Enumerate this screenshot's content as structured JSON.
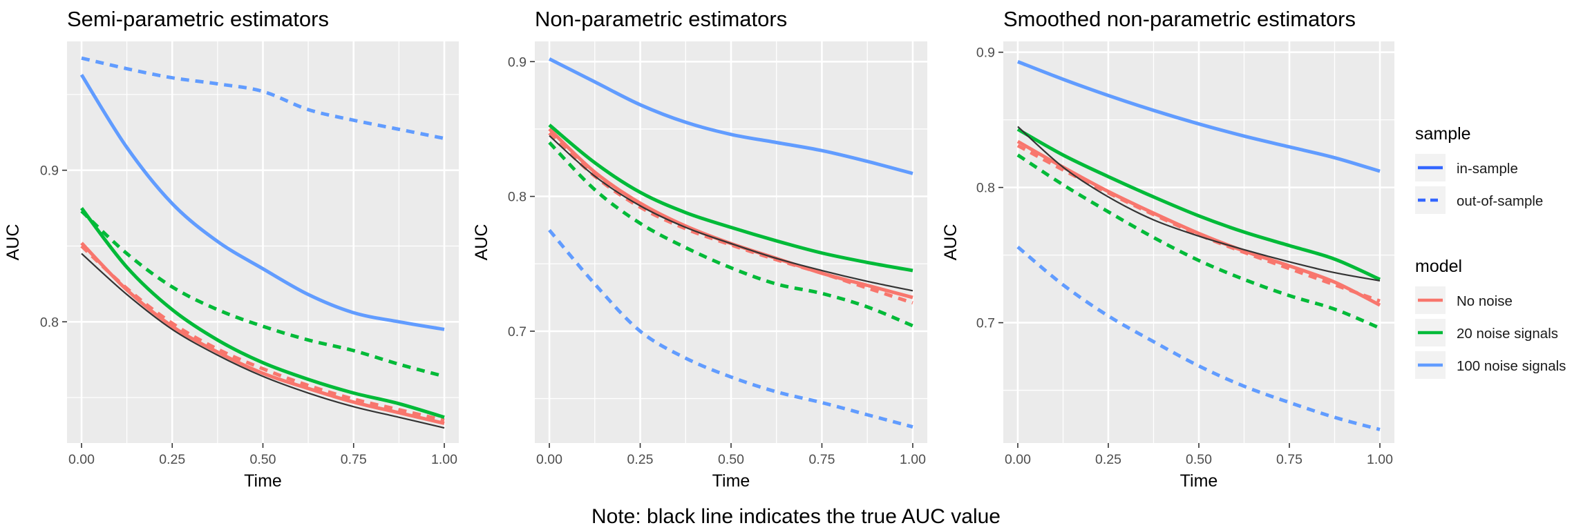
{
  "note": "Note: black line indicates the true AUC value",
  "legend": {
    "sample_title": "sample",
    "sample_items": [
      {
        "label": "in-sample",
        "linetype": "solid"
      },
      {
        "label": "out-of-sample",
        "linetype": "dashed"
      }
    ],
    "model_title": "model",
    "model_items": [
      {
        "label": "No noise",
        "color": "#F8766D"
      },
      {
        "label": "20 noise signals",
        "color": "#00BA38"
      },
      {
        "label": "100 noise signals",
        "color": "#619CFF"
      }
    ]
  },
  "colors": {
    "panel_bg": "#EBEBEB",
    "grid": "#FFFFFF",
    "true_line": "#333333",
    "no_noise": "#F8766D",
    "noise_20": "#00BA38",
    "noise_100": "#619CFF",
    "legend_in_sample_key": "#3366FF"
  },
  "chart_data": [
    {
      "type": "line",
      "title": "Semi-parametric estimators",
      "xlabel": "Time",
      "ylabel": "AUC",
      "xlim": [
        -0.04,
        1.04
      ],
      "ylim": [
        0.72,
        0.985
      ],
      "x_ticks": [
        0,
        0.25,
        0.5,
        0.75,
        1.0
      ],
      "x_tick_labels": [
        "0.00",
        "0.25",
        "0.50",
        "0.75",
        "1.00"
      ],
      "y_ticks": [
        0.8,
        0.9
      ],
      "y_tick_labels": [
        "0.8",
        "0.9"
      ],
      "y_minor_ticks": [
        0.75,
        0.85,
        0.95
      ],
      "x": [
        0,
        0.125,
        0.25,
        0.375,
        0.5,
        0.625,
        0.75,
        0.875,
        1.0
      ],
      "true_auc": [
        0.845,
        0.818,
        0.795,
        0.778,
        0.764,
        0.753,
        0.744,
        0.737,
        0.73
      ],
      "series": [
        {
          "model": "No noise",
          "sample": "in-sample",
          "values": [
            0.852,
            0.821,
            0.797,
            0.78,
            0.766,
            0.756,
            0.747,
            0.74,
            0.733
          ]
        },
        {
          "model": "No noise",
          "sample": "out-of-sample",
          "values": [
            0.85,
            0.822,
            0.799,
            0.782,
            0.769,
            0.758,
            0.749,
            0.742,
            0.735
          ]
        },
        {
          "model": "20 noise signals",
          "sample": "in-sample",
          "values": [
            0.875,
            0.836,
            0.808,
            0.788,
            0.773,
            0.762,
            0.753,
            0.746,
            0.737
          ]
        },
        {
          "model": "20 noise signals",
          "sample": "out-of-sample",
          "values": [
            0.873,
            0.845,
            0.823,
            0.808,
            0.797,
            0.788,
            0.781,
            0.772,
            0.764
          ]
        },
        {
          "model": "100 noise signals",
          "sample": "in-sample",
          "values": [
            0.963,
            0.915,
            0.878,
            0.853,
            0.835,
            0.818,
            0.806,
            0.8,
            0.795
          ]
        },
        {
          "model": "100 noise signals",
          "sample": "out-of-sample",
          "values": [
            0.974,
            0.967,
            0.961,
            0.957,
            0.952,
            0.94,
            0.933,
            0.927,
            0.921
          ]
        }
      ]
    },
    {
      "type": "line",
      "title": "Non-parametric estimators",
      "xlabel": "Time",
      "ylabel": "AUC",
      "xlim": [
        -0.04,
        1.04
      ],
      "ylim": [
        0.617,
        0.915
      ],
      "x_ticks": [
        0,
        0.25,
        0.5,
        0.75,
        1.0
      ],
      "x_tick_labels": [
        "0.00",
        "0.25",
        "0.50",
        "0.75",
        "1.00"
      ],
      "y_ticks": [
        0.7,
        0.8,
        0.9
      ],
      "y_tick_labels": [
        "0.7",
        "0.8",
        "0.9"
      ],
      "y_minor_ticks": [
        0.65,
        0.75,
        0.85
      ],
      "x": [
        0,
        0.125,
        0.25,
        0.375,
        0.5,
        0.625,
        0.75,
        0.875,
        1.0
      ],
      "true_auc": [
        0.845,
        0.815,
        0.793,
        0.777,
        0.765,
        0.754,
        0.745,
        0.737,
        0.73
      ],
      "series": [
        {
          "model": "No noise",
          "sample": "in-sample",
          "values": [
            0.85,
            0.818,
            0.795,
            0.778,
            0.765,
            0.754,
            0.743,
            0.734,
            0.725
          ]
        },
        {
          "model": "No noise",
          "sample": "out-of-sample",
          "values": [
            0.847,
            0.815,
            0.792,
            0.776,
            0.764,
            0.753,
            0.743,
            0.732,
            0.721
          ]
        },
        {
          "model": "20 noise signals",
          "sample": "in-sample",
          "values": [
            0.853,
            0.825,
            0.803,
            0.788,
            0.777,
            0.767,
            0.758,
            0.751,
            0.745
          ]
        },
        {
          "model": "20 noise signals",
          "sample": "out-of-sample",
          "values": [
            0.84,
            0.805,
            0.78,
            0.762,
            0.747,
            0.735,
            0.728,
            0.718,
            0.704
          ]
        },
        {
          "model": "100 noise signals",
          "sample": "in-sample",
          "values": [
            0.902,
            0.885,
            0.868,
            0.855,
            0.846,
            0.84,
            0.834,
            0.826,
            0.817
          ]
        },
        {
          "model": "100 noise signals",
          "sample": "out-of-sample",
          "values": [
            0.775,
            0.735,
            0.7,
            0.68,
            0.666,
            0.655,
            0.647,
            0.638,
            0.629
          ]
        }
      ]
    },
    {
      "type": "line",
      "title": "Smoothed non-parametric estimators",
      "xlabel": "Time",
      "ylabel": "AUC",
      "xlim": [
        -0.04,
        1.04
      ],
      "ylim": [
        0.611,
        0.908
      ],
      "x_ticks": [
        0,
        0.25,
        0.5,
        0.75,
        1.0
      ],
      "x_tick_labels": [
        "0.00",
        "0.25",
        "0.50",
        "0.75",
        "1.00"
      ],
      "y_ticks": [
        0.7,
        0.8,
        0.9
      ],
      "y_tick_labels": [
        "0.7",
        "0.8",
        "0.9"
      ],
      "y_minor_ticks": [
        0.65,
        0.75,
        0.85
      ],
      "x": [
        0,
        0.125,
        0.25,
        0.375,
        0.5,
        0.625,
        0.75,
        0.875,
        1.0
      ],
      "true_auc": [
        0.845,
        0.815,
        0.793,
        0.776,
        0.764,
        0.754,
        0.745,
        0.737,
        0.731
      ],
      "series": [
        {
          "model": "No noise",
          "sample": "in-sample",
          "values": [
            0.834,
            0.815,
            0.797,
            0.781,
            0.766,
            0.753,
            0.742,
            0.73,
            0.713
          ]
        },
        {
          "model": "No noise",
          "sample": "out-of-sample",
          "values": [
            0.831,
            0.813,
            0.796,
            0.78,
            0.765,
            0.752,
            0.74,
            0.728,
            0.716
          ]
        },
        {
          "model": "20 noise signals",
          "sample": "in-sample",
          "values": [
            0.843,
            0.824,
            0.808,
            0.793,
            0.779,
            0.767,
            0.757,
            0.747,
            0.732
          ]
        },
        {
          "model": "20 noise signals",
          "sample": "out-of-sample",
          "values": [
            0.824,
            0.802,
            0.782,
            0.763,
            0.746,
            0.732,
            0.72,
            0.71,
            0.696
          ]
        },
        {
          "model": "100 noise signals",
          "sample": "in-sample",
          "values": [
            0.893,
            0.88,
            0.868,
            0.857,
            0.847,
            0.838,
            0.83,
            0.822,
            0.812
          ]
        },
        {
          "model": "100 noise signals",
          "sample": "out-of-sample",
          "values": [
            0.756,
            0.728,
            0.705,
            0.686,
            0.668,
            0.653,
            0.641,
            0.63,
            0.621
          ]
        }
      ]
    }
  ]
}
